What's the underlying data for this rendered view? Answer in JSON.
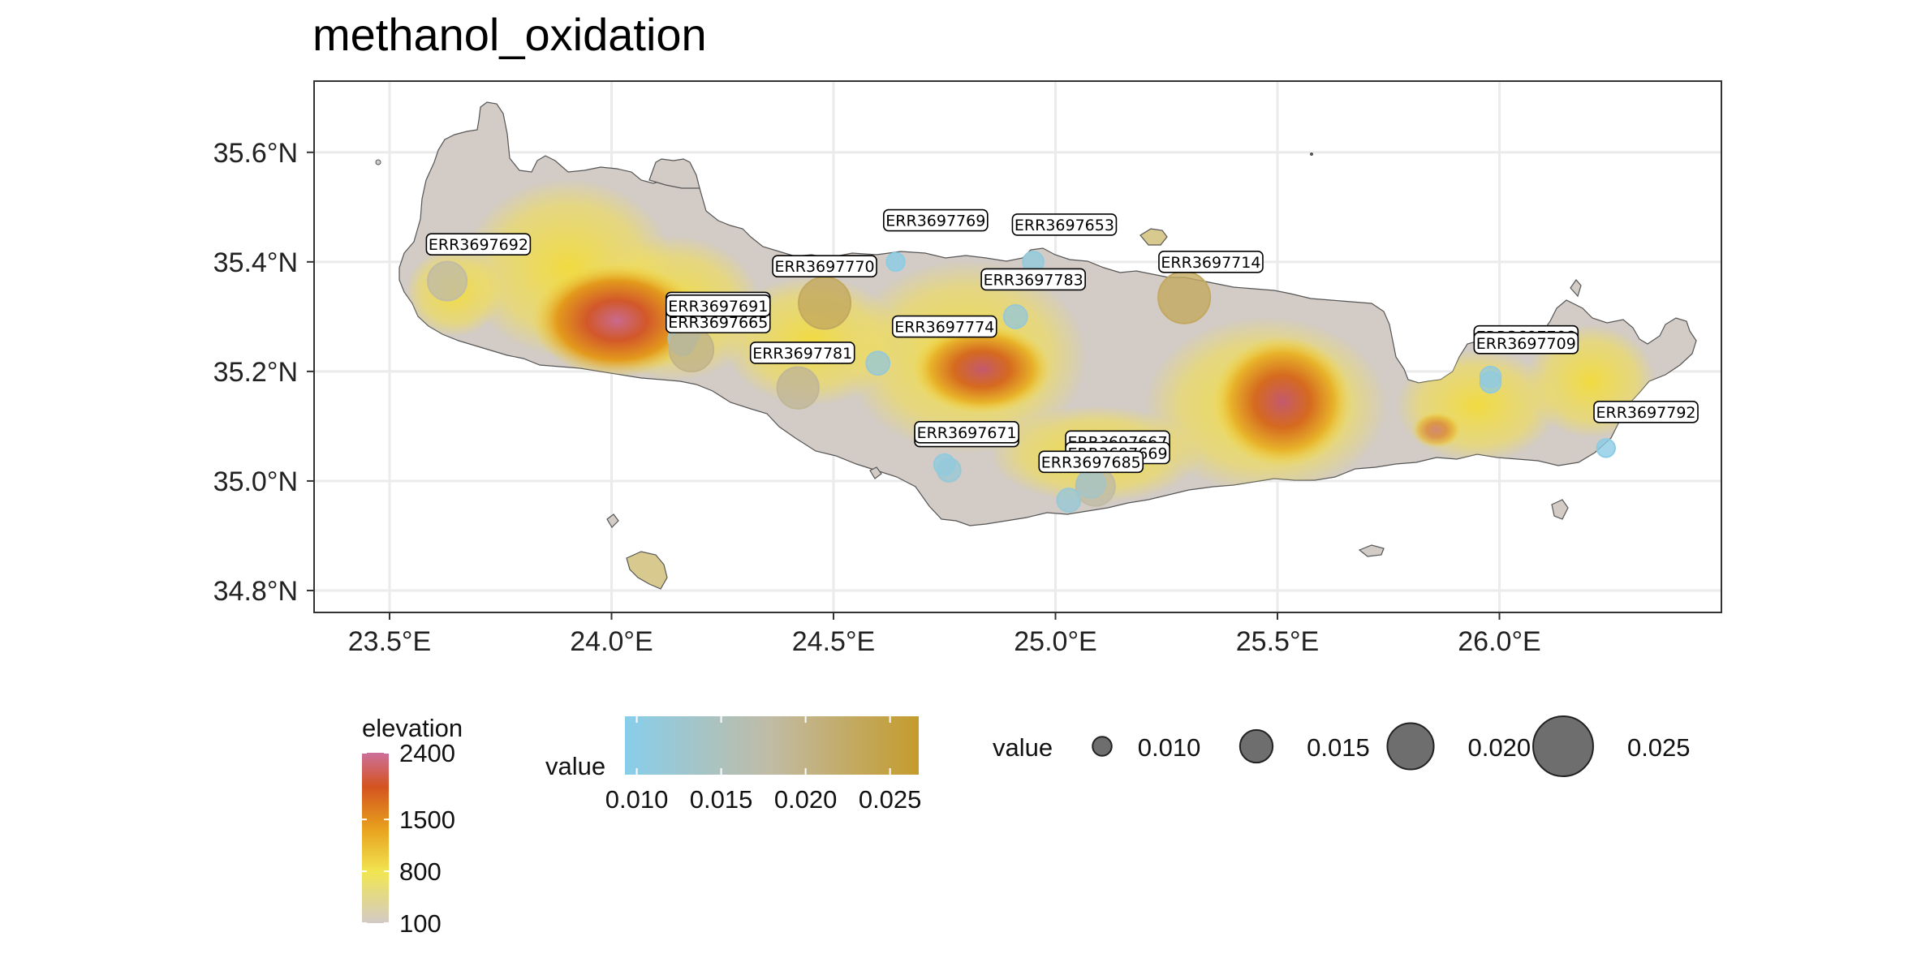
{
  "title": "methanol_oxidation",
  "map": {
    "lon_range": [
      23.33,
      26.5
    ],
    "lat_range": [
      34.76,
      35.73
    ],
    "x_ticks": [
      {
        "value": 23.5,
        "label": "23.5°E"
      },
      {
        "value": 24.0,
        "label": "24.0°E"
      },
      {
        "value": 24.5,
        "label": "24.5°E"
      },
      {
        "value": 25.0,
        "label": "25.0°E"
      },
      {
        "value": 25.5,
        "label": "25.5°E"
      },
      {
        "value": 26.0,
        "label": "26.0°E"
      }
    ],
    "y_ticks": [
      {
        "value": 35.6,
        "label": "35.6°N"
      },
      {
        "value": 35.4,
        "label": "35.4°N"
      },
      {
        "value": 35.2,
        "label": "35.2°N"
      },
      {
        "value": 35.0,
        "label": "35.0°N"
      },
      {
        "value": 34.8,
        "label": "34.8°N"
      }
    ],
    "land_color": "#d2cbc6",
    "grid_color": "#ebebeb"
  },
  "sites": [
    {
      "id": "ERR3697692",
      "lon": 23.63,
      "lat": 35.365,
      "value": 0.018,
      "label_lon": 23.7,
      "label_lat": 35.432
    },
    {
      "id": "ERR3697769",
      "lon": 24.64,
      "lat": 35.4,
      "value": 0.01,
      "label_lon": 24.73,
      "label_lat": 35.476
    },
    {
      "id": "ERR3697653",
      "lon": 24.95,
      "lat": 35.4,
      "value": 0.011,
      "label_lon": 25.02,
      "label_lat": 35.468
    },
    {
      "id": "ERR3697770",
      "lon": 24.48,
      "lat": 35.325,
      "value": 0.023,
      "label_lon": 24.48,
      "label_lat": 35.392
    },
    {
      "id": "ERR3697714",
      "lon": 25.29,
      "lat": 35.335,
      "value": 0.023,
      "label_lon": 25.35,
      "label_lat": 35.4
    },
    {
      "id": "ERR3697783",
      "lon": 24.91,
      "lat": 35.3,
      "value": 0.012,
      "label_lon": 24.95,
      "label_lat": 35.368
    },
    {
      "id": "ERR3697663",
      "lon": 24.17,
      "lat": 35.27,
      "value": 0.013,
      "label_lon": 24.24,
      "label_lat": 35.325
    },
    {
      "id": "ERR3697662",
      "lon": 24.16,
      "lat": 35.26,
      "value": 0.014,
      "label_lon": 24.24,
      "label_lat": 35.313
    },
    {
      "id": "ERR3697665",
      "lon": 24.16,
      "lat": 35.25,
      "value": 0.012,
      "label_lon": 24.24,
      "label_lat": 35.29
    },
    {
      "id": "ERR3697691",
      "lon": 24.18,
      "lat": 35.24,
      "value": 0.02,
      "label_lon": 24.24,
      "label_lat": 35.32
    },
    {
      "id": "ERR3697774",
      "lon": 24.6,
      "lat": 35.215,
      "value": 0.012,
      "label_lon": 24.75,
      "label_lat": 35.282
    },
    {
      "id": "ERR3697781",
      "lon": 24.42,
      "lat": 35.17,
      "value": 0.019,
      "label_lon": 24.43,
      "label_lat": 35.234
    },
    {
      "id": "ERR3697708",
      "lon": 25.98,
      "lat": 35.19,
      "value": 0.011,
      "label_lon": 26.06,
      "label_lat": 35.264
    },
    {
      "id": "ERR3697709",
      "lon": 25.98,
      "lat": 35.18,
      "value": 0.011,
      "label_lon": 26.06,
      "label_lat": 35.252
    },
    {
      "id": "ERR3697792",
      "lon": 26.24,
      "lat": 35.06,
      "value": 0.01,
      "label_lon": 26.33,
      "label_lat": 35.126
    },
    {
      "id": "ERR3697766",
      "lon": 24.76,
      "lat": 35.02,
      "value": 0.012,
      "label_lon": 24.8,
      "label_lat": 35.082
    },
    {
      "id": "ERR3697671",
      "lon": 24.75,
      "lat": 35.03,
      "value": 0.011,
      "label_lon": 24.8,
      "label_lat": 35.089
    },
    {
      "id": "ERR3697667",
      "lon": 25.09,
      "lat": 34.99,
      "value": 0.018,
      "label_lon": 25.14,
      "label_lat": 35.072
    },
    {
      "id": "ERR3697669",
      "lon": 25.08,
      "lat": 34.995,
      "value": 0.014,
      "label_lon": 25.14,
      "label_lat": 35.051
    },
    {
      "id": "ERR3697685",
      "lon": 25.03,
      "lat": 34.965,
      "value": 0.012,
      "label_lon": 25.08,
      "label_lat": 35.035
    }
  ],
  "legend": {
    "elevation": {
      "title": "elevation",
      "labels": [
        {
          "value": 2400,
          "label": "2400"
        },
        {
          "value": 1500,
          "label": "1500"
        },
        {
          "value": 800,
          "label": "800"
        },
        {
          "value": 100,
          "label": "100"
        }
      ],
      "range": [
        100,
        2400
      ]
    },
    "value_color": {
      "title": "value",
      "labels": [
        {
          "value": 0.01,
          "label": "0.010"
        },
        {
          "value": 0.015,
          "label": "0.015"
        },
        {
          "value": 0.02,
          "label": "0.020"
        },
        {
          "value": 0.025,
          "label": "0.025"
        }
      ],
      "range": [
        0.0093,
        0.0267
      ],
      "colors": [
        "#87ceeb",
        "#c49b2c"
      ]
    },
    "value_size": {
      "title": "value",
      "labels": [
        {
          "value": 0.01,
          "label": "0.010"
        },
        {
          "value": 0.015,
          "label": "0.015"
        },
        {
          "value": 0.02,
          "label": "0.020"
        },
        {
          "value": 0.025,
          "label": "0.025"
        }
      ]
    }
  }
}
